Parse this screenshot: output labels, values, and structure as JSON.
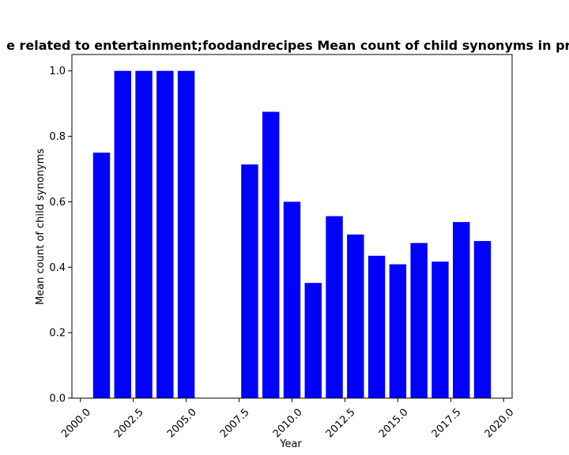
{
  "chart_data": {
    "type": "bar",
    "title": "e related to entertainment;foodandrecipes Mean count of child synonyms in pri",
    "xlabel": "Year",
    "ylabel": "Mean count of child synonyms",
    "x": [
      2001,
      2002,
      2003,
      2004,
      2005,
      2008,
      2009,
      2010,
      2011,
      2012,
      2013,
      2014,
      2015,
      2016,
      2017,
      2018,
      2019
    ],
    "values": [
      0.75,
      1.0,
      1.0,
      1.0,
      1.0,
      0.714,
      0.875,
      0.6,
      0.352,
      0.556,
      0.5,
      0.435,
      0.409,
      0.474,
      0.417,
      0.538,
      0.48
    ],
    "xlim": [
      1999.6,
      2020.4
    ],
    "ylim": [
      0,
      1.05
    ],
    "xticks": [
      2000.0,
      2002.5,
      2005.0,
      2007.5,
      2010.0,
      2012.5,
      2015.0,
      2017.5,
      2020.0
    ],
    "xtick_labels": [
      "2000.0",
      "2002.5",
      "2005.0",
      "2007.5",
      "2010.0",
      "2012.5",
      "2015.0",
      "2017.5",
      "2020.0"
    ],
    "yticks": [
      0.0,
      0.2,
      0.4,
      0.6,
      0.8,
      1.0
    ],
    "ytick_labels": [
      "0.0",
      "0.2",
      "0.4",
      "0.6",
      "0.8",
      "1.0"
    ],
    "bar_color": "#0000ff",
    "grid": false,
    "legend": "none"
  }
}
